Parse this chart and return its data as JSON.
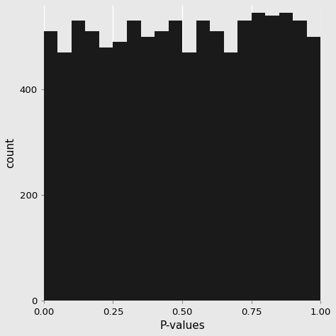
{
  "bar_heights": [
    510,
    470,
    530,
    510,
    480,
    490,
    530,
    500,
    510,
    530,
    470,
    530,
    510,
    470,
    530,
    545,
    540,
    545,
    530,
    500
  ],
  "bin_edges": [
    0.0,
    0.05,
    0.1,
    0.15,
    0.2,
    0.25,
    0.3,
    0.35,
    0.4,
    0.45,
    0.5,
    0.55,
    0.6,
    0.65,
    0.7,
    0.75,
    0.8,
    0.85,
    0.9,
    0.95,
    1.0
  ],
  "bar_color": "#1a1a1a",
  "xlabel": "P-values",
  "ylabel": "count",
  "xlim": [
    0.0,
    1.0
  ],
  "ylim": [
    0,
    560
  ],
  "yticks": [
    0,
    200,
    400
  ],
  "xticks": [
    0.0,
    0.25,
    0.5,
    0.75,
    1.0
  ],
  "xtick_labels": [
    "0.00",
    "0.25",
    "0.50",
    "0.75",
    "1.00"
  ],
  "bg_color": "#e8e8e8",
  "panel_bg": "#e8e8e8",
  "grid_color": "#ffffff",
  "label_fontsize": 11,
  "tick_fontsize": 9.5
}
